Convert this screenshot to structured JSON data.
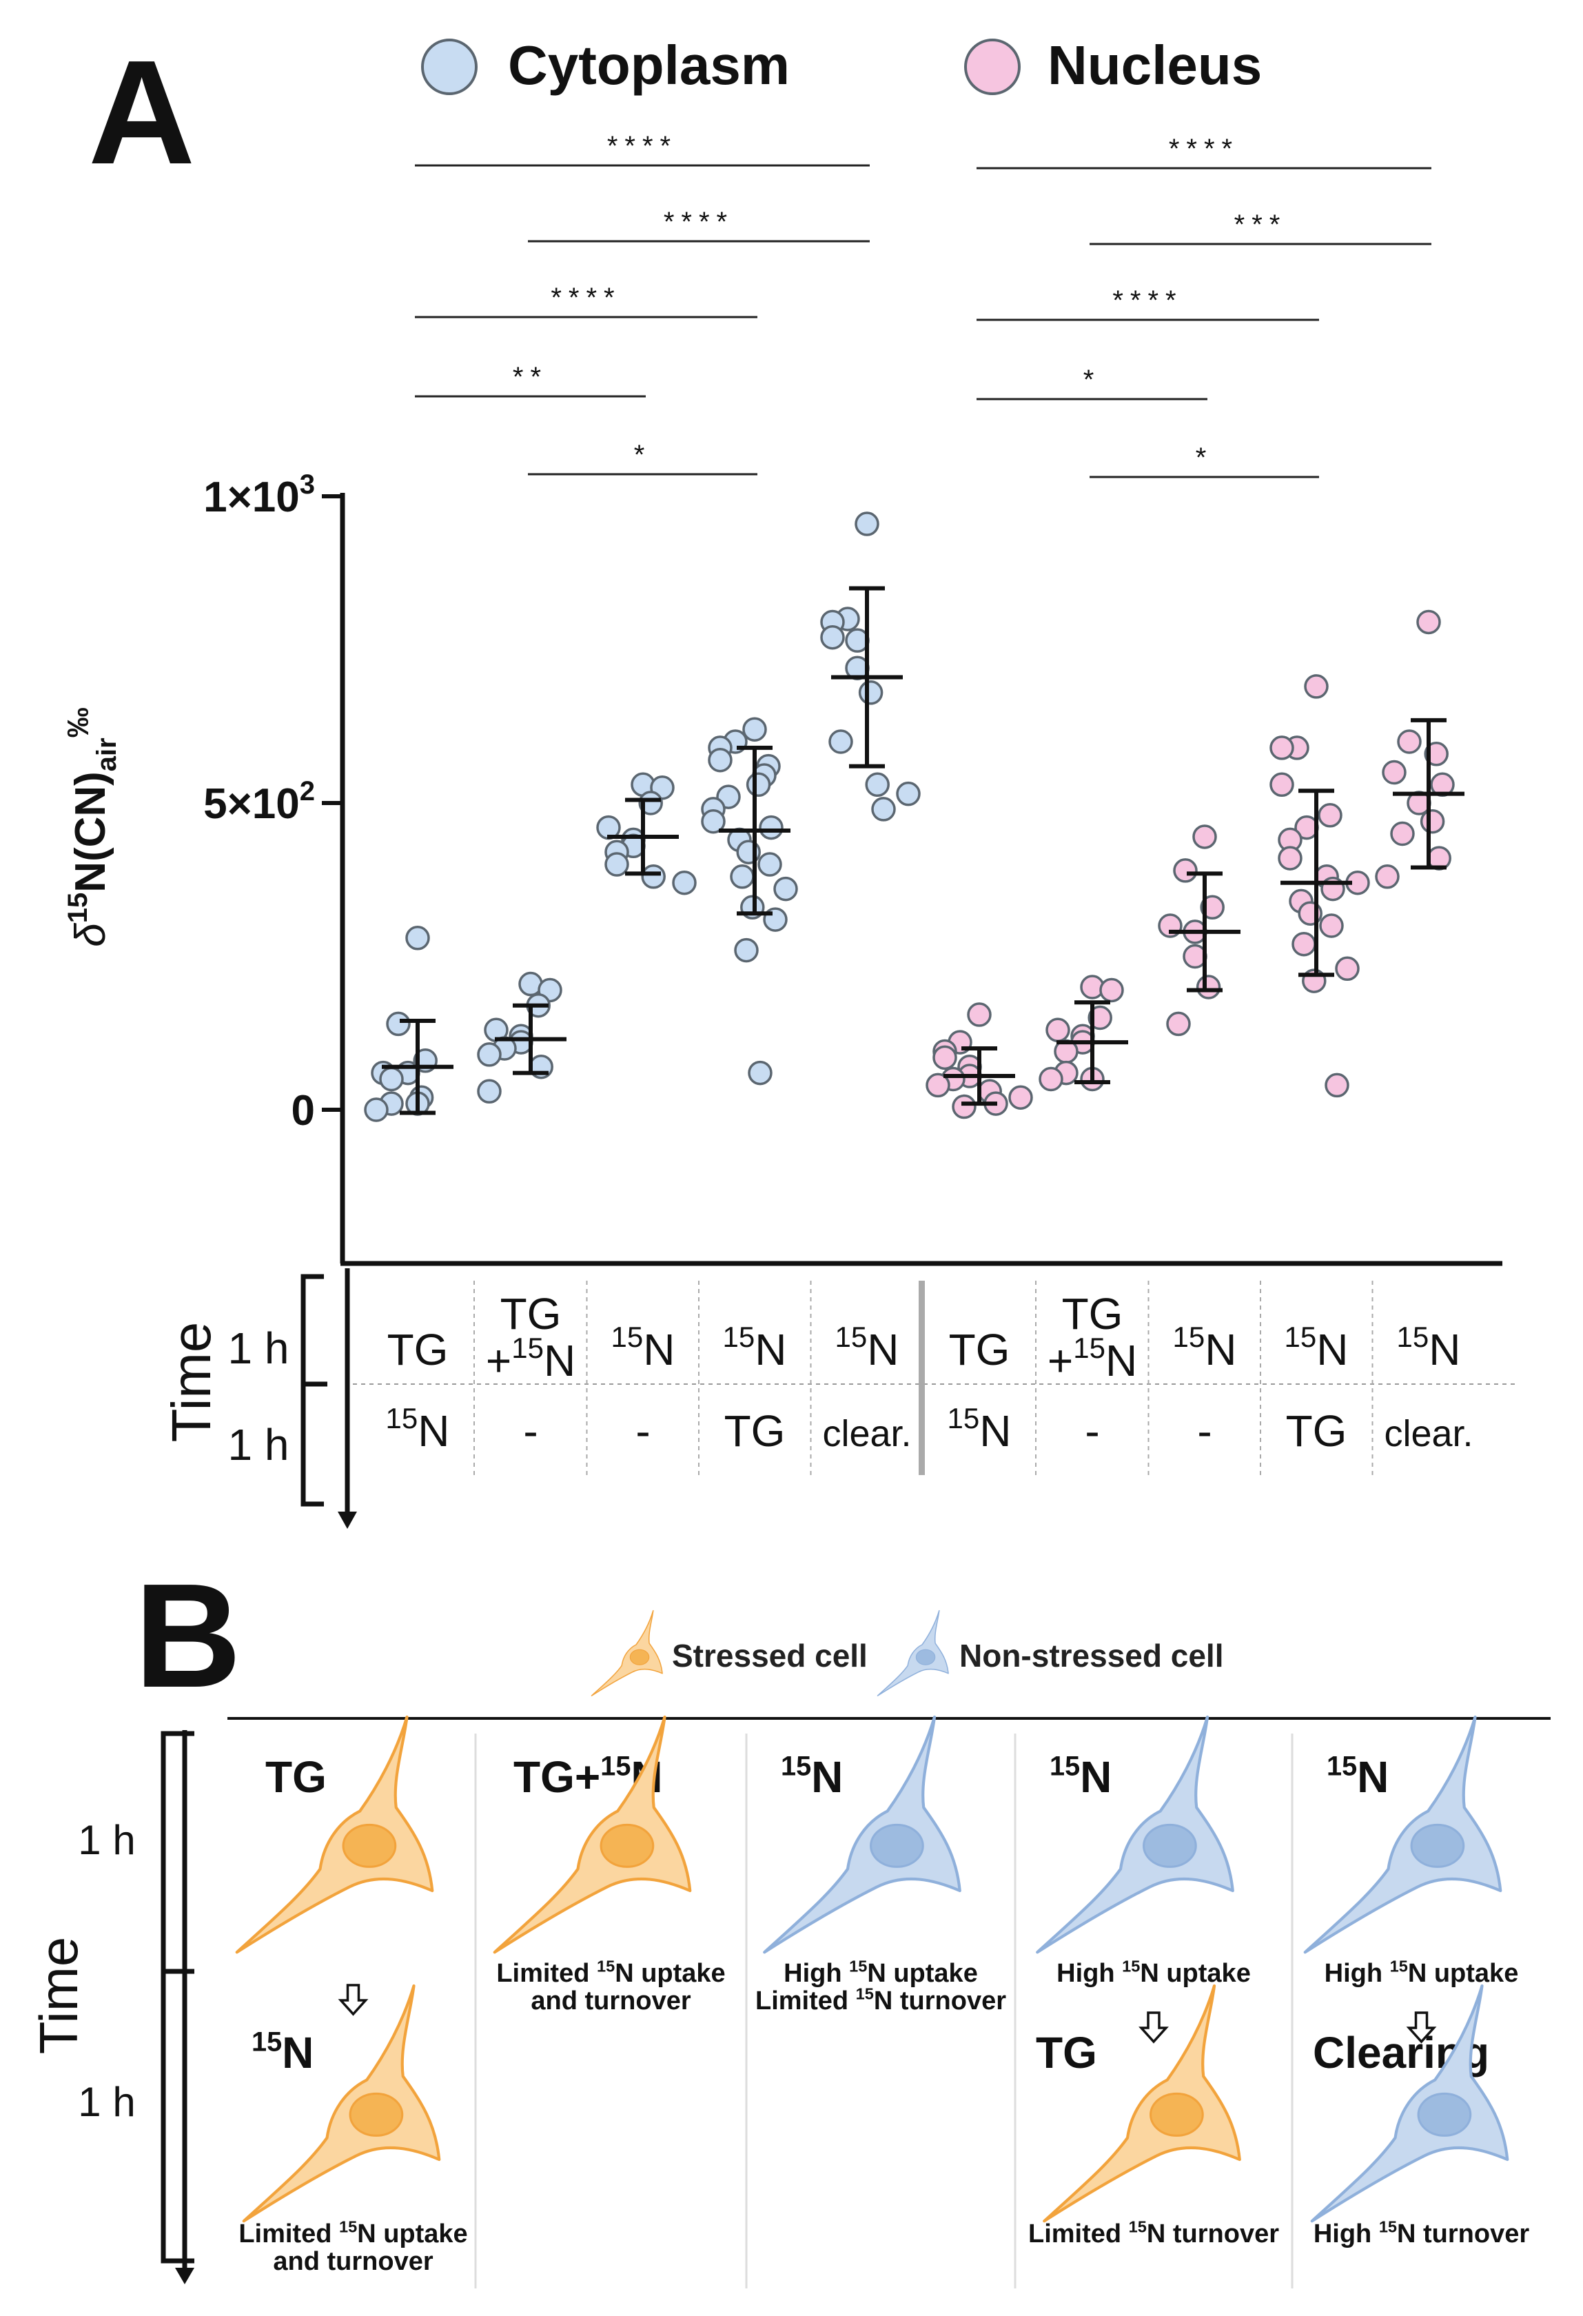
{
  "panel_a": {
    "label": "A",
    "legend": [
      {
        "name": "Cytoplasm",
        "color": "#c8dcf2"
      },
      {
        "name": "Nucleus",
        "color": "#f6c5e0"
      }
    ],
    "marker_stroke": "#5b6670",
    "ylabel_parts": {
      "pre": "δ",
      "sup": "15",
      "main": "N(CN)",
      "sub": "air",
      "unit": "‰"
    },
    "y_ticks": [
      {
        "value": 0,
        "label": "0",
        "sup": ""
      },
      {
        "value": 500,
        "label": "5×10",
        "sup": "2"
      },
      {
        "value": 1000,
        "label": "1×10",
        "sup": "3"
      }
    ],
    "significance": [
      {
        "from": 0,
        "to": 4,
        "stars": "****",
        "tier": 0
      },
      {
        "from": 1,
        "to": 4,
        "stars": "****",
        "tier": 1
      },
      {
        "from": 0,
        "to": 3,
        "stars": "****",
        "tier": 2
      },
      {
        "from": 0,
        "to": 2,
        "stars": "**",
        "tier": 3
      },
      {
        "from": 1,
        "to": 3,
        "stars": "*",
        "tier": 4
      },
      {
        "from": 5,
        "to": 9,
        "stars": "****",
        "tier": 0
      },
      {
        "from": 6,
        "to": 9,
        "stars": "***",
        "tier": 1
      },
      {
        "from": 5,
        "to": 8,
        "stars": "****",
        "tier": 2
      },
      {
        "from": 5,
        "to": 7,
        "stars": "*",
        "tier": 3
      },
      {
        "from": 6,
        "to": 8,
        "stars": "*",
        "tier": 4
      }
    ],
    "time_axis": {
      "label": "Time",
      "periods": [
        "1 h",
        "1 h"
      ]
    },
    "conditions": [
      {
        "row1": {
          "pre": "",
          "sup": "",
          "main": "TG"
        },
        "row2": {
          "sup": "15",
          "main": "N"
        }
      },
      {
        "row1": {
          "pre": "TG",
          "sup": "15",
          "main": "N",
          "prefix2": "+"
        },
        "row2": {
          "sup": "",
          "main": "-"
        }
      },
      {
        "row1": {
          "pre": "",
          "sup": "15",
          "main": "N"
        },
        "row2": {
          "sup": "",
          "main": "-"
        }
      },
      {
        "row1": {
          "pre": "",
          "sup": "15",
          "main": "N"
        },
        "row2": {
          "sup": "",
          "main": "TG"
        }
      },
      {
        "row1": {
          "pre": "",
          "sup": "15",
          "main": "N"
        },
        "row2": {
          "sup": "",
          "main": "clear."
        }
      },
      {
        "row1": {
          "pre": "",
          "sup": "",
          "main": "TG"
        },
        "row2": {
          "sup": "15",
          "main": "N"
        }
      },
      {
        "row1": {
          "pre": "TG",
          "sup": "15",
          "main": "N",
          "prefix2": "+"
        },
        "row2": {
          "sup": "",
          "main": "-"
        }
      },
      {
        "row1": {
          "pre": "",
          "sup": "15",
          "main": "N"
        },
        "row2": {
          "sup": "",
          "main": "-"
        }
      },
      {
        "row1": {
          "pre": "",
          "sup": "15",
          "main": "N"
        },
        "row2": {
          "sup": "",
          "main": "TG"
        }
      },
      {
        "row1": {
          "pre": "",
          "sup": "15",
          "main": "N"
        },
        "row2": {
          "sup": "",
          "main": "clear."
        }
      }
    ]
  },
  "chart_data": {
    "type": "scatter",
    "title": "",
    "xlabel": "",
    "ylabel": "δ15N(CN)air‰",
    "ylim": [
      -200,
      1000
    ],
    "categories": [
      "TG | 15N",
      "TG+15N | -",
      "15N | -",
      "15N | TG",
      "15N | clear.",
      "TG | 15N",
      "TG+15N | -",
      "15N | -",
      "15N | TG",
      "15N | clear."
    ],
    "series": [
      {
        "name": "Cytoplasm",
        "color": "#c8dcf2",
        "groups": [
          {
            "mean": 70,
            "sd": 75,
            "points": [
              280,
              140,
              80,
              60,
              60,
              50,
              20,
              10,
              0,
              10
            ]
          },
          {
            "mean": 115,
            "sd": 55,
            "points": [
              205,
              195,
              170,
              130,
              120,
              110,
              100,
              90,
              70,
              30
            ]
          },
          {
            "mean": 445,
            "sd": 60,
            "points": [
              530,
              525,
              500,
              460,
              440,
              430,
              420,
              400,
              380,
              370
            ]
          },
          {
            "mean": 455,
            "sd": 135,
            "points": [
              620,
              600,
              590,
              570,
              560,
              545,
              530,
              510,
              490,
              470,
              460,
              440,
              420,
              400,
              380,
              360,
              330,
              310,
              260,
              60
            ]
          },
          {
            "mean": 705,
            "sd": 145,
            "points": [
              955,
              800,
              795,
              770,
              765,
              720,
              680,
              600,
              530,
              515,
              490
            ]
          }
        ]
      },
      {
        "name": "Nucleus",
        "color": "#f6c5e0",
        "groups": [
          {
            "mean": 55,
            "sd": 45,
            "points": [
              155,
              110,
              95,
              85,
              70,
              55,
              50,
              40,
              30,
              20,
              10,
              5
            ]
          },
          {
            "mean": 110,
            "sd": 65,
            "points": [
              200,
              195,
              150,
              130,
              120,
              110,
              95,
              60,
              50,
              50
            ]
          },
          {
            "mean": 290,
            "sd": 95,
            "points": [
              445,
              390,
              330,
              300,
              290,
              250,
              200,
              140
            ]
          },
          {
            "mean": 370,
            "sd": 150,
            "points": [
              690,
              590,
              590,
              530,
              480,
              460,
              440,
              410,
              380,
              370,
              360,
              340,
              320,
              300,
              270,
              230,
              210,
              40
            ]
          },
          {
            "mean": 515,
            "sd": 120,
            "points": [
              795,
              600,
              580,
              550,
              530,
              500,
              470,
              450,
              410,
              380
            ]
          }
        ]
      }
    ]
  },
  "panel_b": {
    "label": "B",
    "legend": [
      {
        "name": "Stressed cell",
        "kind": "stressed"
      },
      {
        "name": "Non-stressed cell",
        "kind": "normal"
      }
    ],
    "stressed_fill": "#fbd6a0",
    "stressed_nucleus": "#f5b454",
    "stressed_stroke": "#f2a33c",
    "normal_fill": "#c7d9ef",
    "normal_nucleus": "#9dbbe0",
    "normal_stroke": "#8fb0db",
    "time_label": "Time",
    "periods": [
      "1 h",
      "1 h"
    ],
    "columns": [
      {
        "top": {
          "kind": "stressed",
          "label_pre": "TG",
          "label_sup": "",
          "label_main": "",
          "label_plus": ""
        },
        "bottom": {
          "kind": "stressed",
          "label_pre": "",
          "label_sup": "15",
          "label_main": "N",
          "label_plus": ""
        },
        "mid_caption": [],
        "bottom_caption": [
          {
            "pre": "Limited ",
            "sup": "15",
            "post": "N uptake"
          },
          {
            "pre": "and turnover",
            "sup": "",
            "post": ""
          }
        ]
      },
      {
        "top": {
          "kind": "stressed",
          "label_pre": "TG",
          "label_sup": "15",
          "label_main": "N",
          "label_plus": "+"
        },
        "bottom": null,
        "mid_caption": [
          {
            "pre": "Limited ",
            "sup": "15",
            "post": "N uptake"
          },
          {
            "pre": "and turnover",
            "sup": "",
            "post": ""
          }
        ],
        "bottom_caption": []
      },
      {
        "top": {
          "kind": "normal",
          "label_pre": "",
          "label_sup": "15",
          "label_main": "N",
          "label_plus": ""
        },
        "bottom": null,
        "mid_caption": [
          {
            "pre": "High ",
            "sup": "15",
            "post": "N uptake"
          },
          {
            "pre": "Limited ",
            "sup": "15",
            "post": "N turnover"
          }
        ],
        "bottom_caption": []
      },
      {
        "top": {
          "kind": "normal",
          "label_pre": "",
          "label_sup": "15",
          "label_main": "N",
          "label_plus": ""
        },
        "bottom": {
          "kind": "stressed",
          "label_pre": "TG",
          "label_sup": "",
          "label_main": "",
          "label_plus": ""
        },
        "mid_caption": [
          {
            "pre": "High ",
            "sup": "15",
            "post": "N uptake"
          }
        ],
        "bottom_caption": [
          {
            "pre": "Limited ",
            "sup": "15",
            "post": "N turnover"
          }
        ]
      },
      {
        "top": {
          "kind": "normal",
          "label_pre": "",
          "label_sup": "15",
          "label_main": "N",
          "label_plus": ""
        },
        "bottom": {
          "kind": "normal",
          "label_pre": "Clearing",
          "label_sup": "",
          "label_main": "",
          "label_plus": ""
        },
        "mid_caption": [
          {
            "pre": "High ",
            "sup": "15",
            "post": "N uptake"
          }
        ],
        "bottom_caption": [
          {
            "pre": "High ",
            "sup": "15",
            "post": "N turnover"
          }
        ]
      }
    ]
  }
}
